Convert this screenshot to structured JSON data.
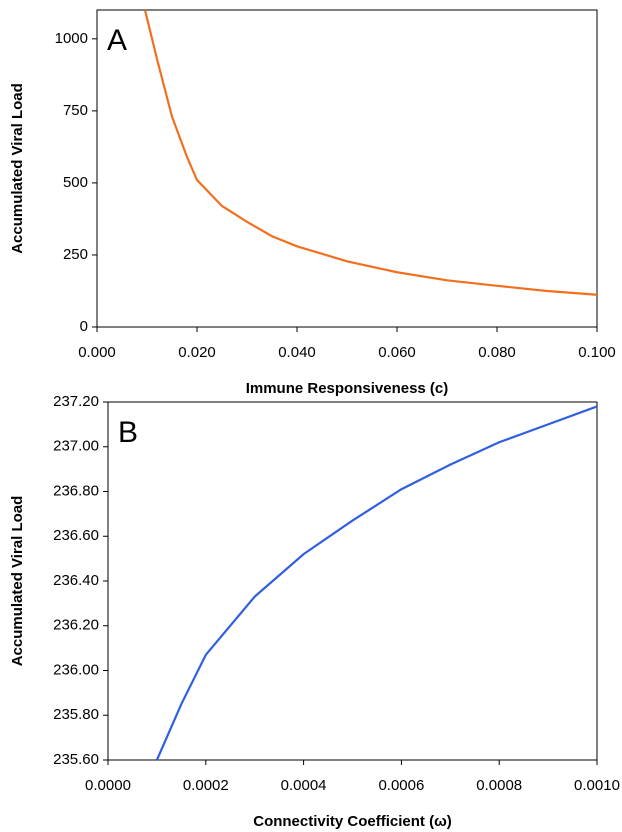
{
  "chart_data": [
    {
      "type": "line",
      "annotation": "A",
      "x_label": "Immune Responsiveness (c)",
      "y_label": "Accumulated Viral Load",
      "x": [
        0.0096,
        0.012,
        0.015,
        0.018,
        0.02,
        0.025,
        0.03,
        0.035,
        0.04,
        0.05,
        0.06,
        0.07,
        0.08,
        0.09,
        0.1
      ],
      "series": [
        {
          "color": "#f07020",
          "values": [
            1100,
            930,
            730,
            590,
            510,
            420,
            365,
            315,
            280,
            228,
            190,
            162,
            143,
            125,
            112
          ]
        }
      ],
      "xlim": [
        0,
        0.1
      ],
      "ylim": [
        0,
        1100
      ],
      "xticks": [
        {
          "value": 0,
          "label": "0.000"
        },
        {
          "value": 0.02,
          "label": "0.020"
        },
        {
          "value": 0.04,
          "label": "0.040"
        },
        {
          "value": 0.06,
          "label": "0.060"
        },
        {
          "value": 0.08,
          "label": "0.080"
        },
        {
          "value": 0.1,
          "label": "0.100"
        }
      ],
      "yticks": [
        0,
        250,
        500,
        750,
        1000
      ]
    },
    {
      "type": "line",
      "annotation": "B",
      "x_label": "Connectivity Coefficient (ω)",
      "y_label": "Accumulated Viral Load",
      "x": [
        0.0001,
        0.00015,
        0.0002,
        0.0003,
        0.0004,
        0.0005,
        0.0006,
        0.0007,
        0.0008,
        0.0009,
        0.001
      ],
      "series": [
        {
          "color": "#3060e0",
          "values": [
            235.6,
            235.85,
            236.07,
            236.33,
            236.52,
            236.67,
            236.81,
            236.92,
            237.02,
            237.1,
            237.18
          ]
        }
      ],
      "xlim": [
        0,
        0.001
      ],
      "ylim": [
        235.6,
        237.2
      ],
      "xticks": [
        {
          "value": 0,
          "label": "0.0000"
        },
        {
          "value": 0.0002,
          "label": "0.0002"
        },
        {
          "value": 0.0004,
          "label": "0.0004"
        },
        {
          "value": 0.0006,
          "label": "0.0006"
        },
        {
          "value": 0.0008,
          "label": "0.0008"
        },
        {
          "value": 0.001,
          "label": "0.0010"
        }
      ],
      "yticks": [
        {
          "value": 235.6,
          "label": "235.60"
        },
        {
          "value": 235.8,
          "label": "235.80"
        },
        {
          "value": 236.0,
          "label": "236.00"
        },
        {
          "value": 236.2,
          "label": "236.20"
        },
        {
          "value": 236.4,
          "label": "236.40"
        },
        {
          "value": 236.6,
          "label": "236.60"
        },
        {
          "value": 236.8,
          "label": "236.80"
        },
        {
          "value": 237.0,
          "label": "237.00"
        },
        {
          "value": 237.2,
          "label": "237.20"
        }
      ]
    }
  ]
}
